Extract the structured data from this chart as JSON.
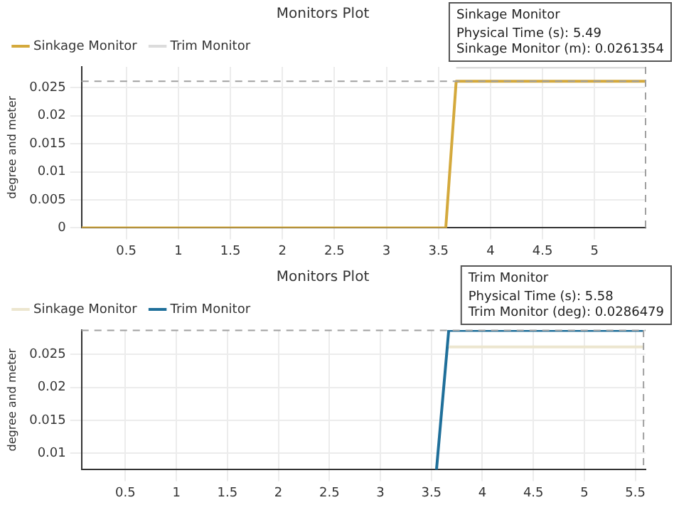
{
  "chart_data": [
    {
      "type": "line",
      "title": "Monitors Plot",
      "ylabel": "degree and meter",
      "xlim": [
        0.07,
        5.49
      ],
      "xticks": [
        0.5,
        1,
        1.5,
        2,
        2.5,
        3,
        3.5,
        4,
        4.5,
        5
      ],
      "ylim": [
        0,
        0.0287
      ],
      "yticks": [
        0,
        0.005,
        0.01,
        0.015,
        0.02,
        0.025
      ],
      "grid": true,
      "legend": "top left",
      "marker": "none",
      "series": [
        {
          "name": "Sinkage Monitor",
          "color": "#d4a93c",
          "x": [
            0.07,
            3.57,
            3.67,
            5.49
          ],
          "values": [
            0,
            0,
            0.0261354,
            0.0261354
          ]
        },
        {
          "name": "Trim Monitor",
          "color": "#dcdcdc",
          "x": [
            3.67,
            5.49
          ],
          "values": [
            0.0286479,
            0.0286479
          ]
        }
      ],
      "ref_lines": [
        {
          "axis": "y",
          "value": 0.0261354,
          "color": "#a0a0a0",
          "line_style": "dashed"
        },
        {
          "axis": "x",
          "value": 5.49,
          "color": "#a0a0a0",
          "line_style": "dashed"
        }
      ],
      "annotations": [
        "Sinkage Monitor",
        "Physical Time (s): 5.49",
        "Sinkage Monitor (m): 0.0261354"
      ]
    },
    {
      "type": "line",
      "title": "Monitors Plot",
      "ylabel": "degree and meter",
      "xlim": [
        0.07,
        5.6
      ],
      "xticks": [
        0.5,
        1,
        1.5,
        2,
        2.5,
        3,
        3.5,
        4,
        4.5,
        5,
        5.5
      ],
      "ylim": [
        0.0075,
        0.0287
      ],
      "yticks": [
        0.01,
        0.015,
        0.02,
        0.025
      ],
      "grid": true,
      "legend": "top left",
      "marker": "none",
      "series": [
        {
          "name": "Sinkage Monitor",
          "color": "#ece6cf",
          "x": [
            3.67,
            5.58
          ],
          "values": [
            0.0261354,
            0.0261354
          ]
        },
        {
          "name": "Trim Monitor",
          "color": "#1f6f9a",
          "x": [
            3.55,
            3.67,
            5.58
          ],
          "values": [
            0.0075,
            0.0286479,
            0.0286479
          ]
        }
      ],
      "ref_lines": [
        {
          "axis": "y",
          "value": 0.0286479,
          "color": "#a0a0a0",
          "line_style": "dashed"
        },
        {
          "axis": "x",
          "value": 5.58,
          "color": "#a0a0a0",
          "line_style": "dashed"
        }
      ],
      "annotations": [
        "Trim Monitor",
        "Physical Time (s): 5.58",
        "Trim Monitor (deg): 0.0286479"
      ]
    }
  ]
}
